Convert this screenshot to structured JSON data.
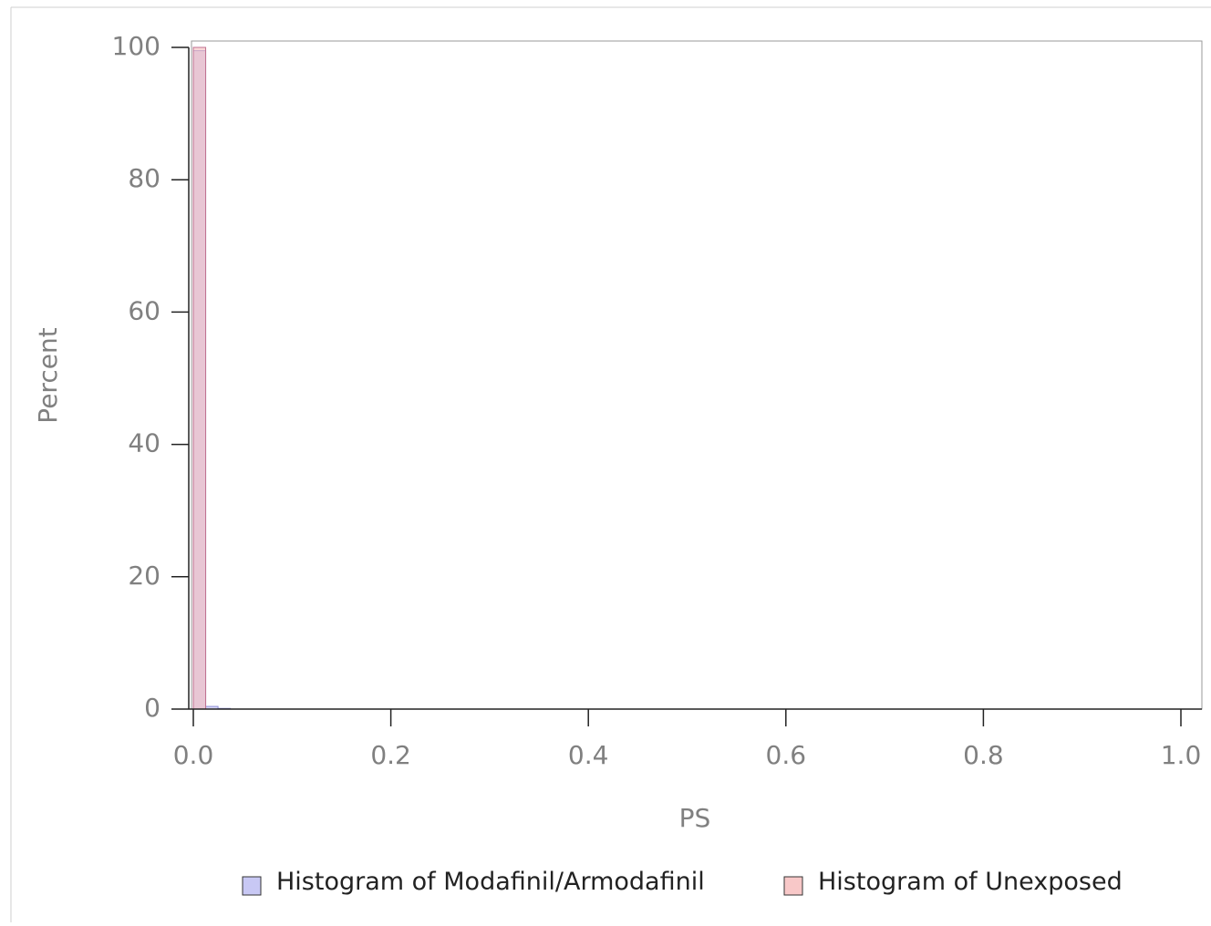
{
  "chart_data": {
    "type": "bar",
    "title": "",
    "xlabel": "PS",
    "ylabel": "Percent",
    "xlim": [
      0,
      1.0
    ],
    "ylim": [
      0,
      100
    ],
    "x_ticks": [
      "0.0",
      "0.2",
      "0.4",
      "0.6",
      "0.8",
      "1.0"
    ],
    "y_ticks": [
      "0",
      "20",
      "40",
      "60",
      "80",
      "100"
    ],
    "bin_width": 0.0125,
    "grid": false,
    "legend_position": "bottom",
    "series": [
      {
        "name": "Histogram of Modafinil/Armodafinil",
        "color": "#b8b8f0",
        "bins": [
          {
            "x0": 0.0,
            "x1": 0.0125,
            "value": 99.5
          },
          {
            "x0": 0.0125,
            "x1": 0.025,
            "value": 0.4
          },
          {
            "x0": 0.025,
            "x1": 0.0375,
            "value": 0.1
          }
        ]
      },
      {
        "name": "Histogram of Unexposed",
        "color": "#f6b8b8",
        "bins": [
          {
            "x0": 0.0,
            "x1": 0.0125,
            "value": 100
          }
        ]
      }
    ],
    "overlap_color": "#d8a0cc"
  }
}
